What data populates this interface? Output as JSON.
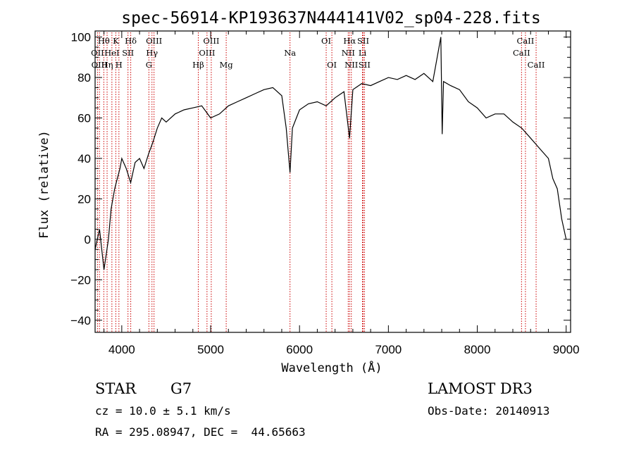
{
  "chart_data": {
    "type": "line",
    "title": "spec-56914-KP193637N444141V02_sp04-228.fits",
    "xlabel": "Wavelength (Å)",
    "ylabel": "Flux (relative)",
    "xlim": [
      3700,
      9050
    ],
    "ylim": [
      -46,
      103
    ],
    "xticks": [
      4000,
      5000,
      6000,
      7000,
      8000,
      9000
    ],
    "yticks": [
      -40,
      -20,
      0,
      20,
      40,
      60,
      80,
      100
    ],
    "grid": false,
    "line_color": "#000000",
    "marker_color": "#cc0000",
    "series": [
      {
        "x": [
          3700,
          3750,
          3800,
          3850,
          3880,
          3920,
          3950,
          3980,
          4000,
          4050,
          4100,
          4150,
          4200,
          4250,
          4300,
          4350,
          4400,
          4450,
          4500,
          4600,
          4700,
          4800,
          4900,
          5000,
          5100,
          5200,
          5300,
          5400,
          5500,
          5600,
          5700,
          5800,
          5850,
          5893,
          5920,
          6000,
          6100,
          6200,
          6300,
          6400,
          6500,
          6563,
          6600,
          6700,
          6800,
          6900,
          7000,
          7100,
          7200,
          7300,
          7400,
          7500,
          7590,
          7605,
          7620,
          7700,
          7800,
          7900,
          8000,
          8100,
          8200,
          8300,
          8400,
          8500,
          8600,
          8700,
          8800,
          8850,
          8900,
          8950,
          9000
        ],
        "y": [
          -5,
          5,
          -15,
          0,
          15,
          25,
          30,
          35,
          40,
          35,
          28,
          38,
          40,
          35,
          42,
          48,
          55,
          60,
          58,
          62,
          64,
          65,
          66,
          60,
          62,
          66,
          68,
          70,
          72,
          74,
          75,
          71,
          55,
          33,
          55,
          64,
          67,
          68,
          66,
          70,
          73,
          50,
          74,
          77,
          76,
          78,
          80,
          79,
          81,
          79,
          82,
          78,
          100,
          52,
          78,
          76,
          74,
          68,
          65,
          60,
          62,
          62,
          58,
          55,
          50,
          45,
          40,
          30,
          25,
          10,
          0
        ]
      }
    ],
    "lines": [
      {
        "name": "Hθ",
        "x": 3798,
        "row": 1
      },
      {
        "name": "OII",
        "x": 3727,
        "row": 2
      },
      {
        "name": "OIII",
        "x": 3749,
        "row": 3
      },
      {
        "name": "K",
        "x": 3933,
        "row": 1
      },
      {
        "name": "HeI",
        "x": 3889,
        "row": 2
      },
      {
        "name": "Hη",
        "x": 3835,
        "row": 3
      },
      {
        "name": "Hδ",
        "x": 4101,
        "row": 1
      },
      {
        "name": "SII",
        "x": 4070,
        "row": 2
      },
      {
        "name": "H",
        "x": 3968,
        "row": 3
      },
      {
        "name": "OIII",
        "x": 4363,
        "row": 1
      },
      {
        "name": "Hγ",
        "x": 4340,
        "row": 2
      },
      {
        "name": "G",
        "x": 4305,
        "row": 3
      },
      {
        "name": "OIII",
        "x": 5007,
        "row": 1
      },
      {
        "name": "OIII",
        "x": 4959,
        "row": 2
      },
      {
        "name": "Hβ",
        "x": 4861,
        "row": 3
      },
      {
        "name": "Mg",
        "x": 5175,
        "row": 3
      },
      {
        "name": "Na",
        "x": 5893,
        "row": 2
      },
      {
        "name": "OI",
        "x": 6300,
        "row": 1
      },
      {
        "name": "OI",
        "x": 6364,
        "row": 3
      },
      {
        "name": "Hα",
        "x": 6563,
        "row": 1
      },
      {
        "name": "SII",
        "x": 6716,
        "row": 1
      },
      {
        "name": "NII",
        "x": 6548,
        "row": 2
      },
      {
        "name": "Li",
        "x": 6708,
        "row": 2
      },
      {
        "name": "NII",
        "x": 6583,
        "row": 3
      },
      {
        "name": "SII",
        "x": 6731,
        "row": 3
      },
      {
        "name": "CaII",
        "x": 8542,
        "row": 1
      },
      {
        "name": "CaII",
        "x": 8498,
        "row": 2
      },
      {
        "name": "CaII",
        "x": 8662,
        "row": 3
      }
    ]
  },
  "info": {
    "object_type": "STAR",
    "subclass": "G7",
    "survey": "LAMOST DR3",
    "cz": "cz = 10.0 ± 5.1 km/s",
    "obs_date": "Obs-Date: 20140913",
    "coords": "RA = 295.08947, DEC =  44.65663"
  }
}
